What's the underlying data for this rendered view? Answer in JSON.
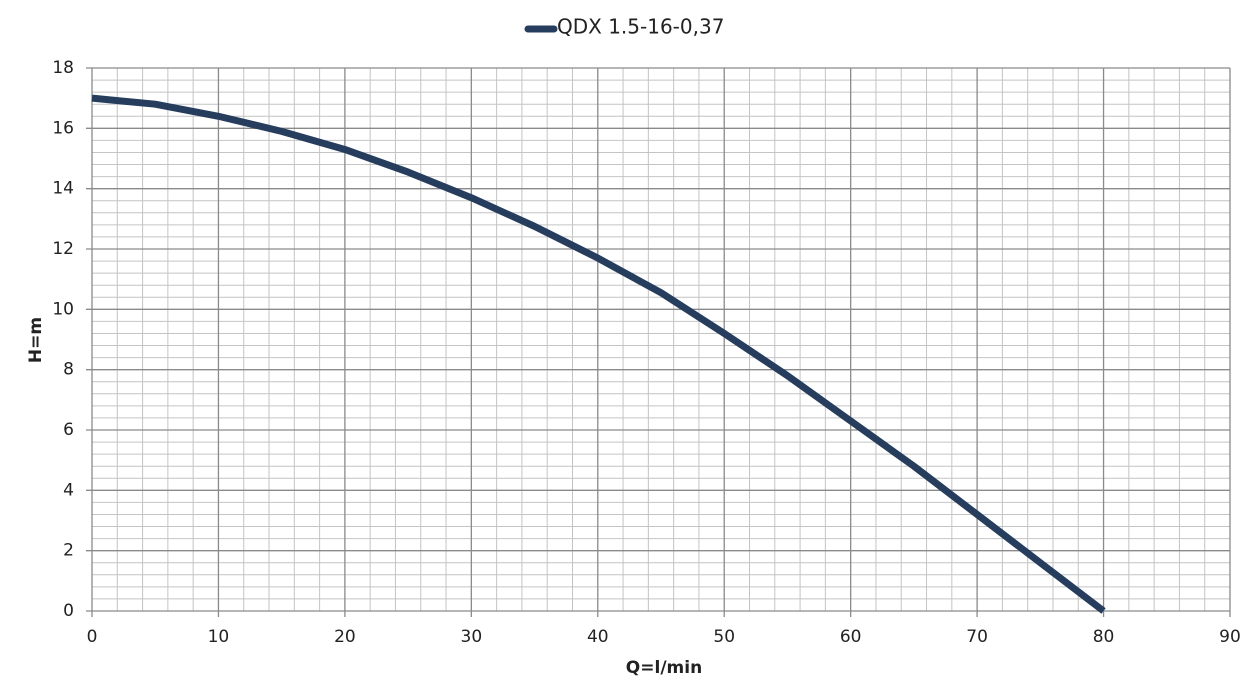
{
  "chart_data": {
    "type": "line",
    "x_label": "Q=l/min",
    "y_label": "H=m",
    "x": [
      0,
      5,
      10,
      15,
      20,
      25,
      30,
      35,
      40,
      45,
      50,
      55,
      60,
      65,
      70,
      75,
      80
    ],
    "series": [
      {
        "name": "QDX 1.5-16-0,37",
        "color": "#263d5e",
        "values": [
          17,
          16.8,
          16.4,
          15.9,
          15.3,
          14.55,
          13.7,
          12.75,
          11.7,
          10.55,
          9.2,
          7.8,
          6.3,
          4.8,
          3.2,
          1.6,
          0
        ]
      }
    ],
    "xlim": [
      0,
      90
    ],
    "xticks": [
      0,
      10,
      20,
      30,
      40,
      50,
      60,
      70,
      80,
      90
    ],
    "ylim": [
      0,
      18
    ],
    "yticks": [
      0,
      2,
      4,
      6,
      8,
      10,
      12,
      14,
      16,
      18
    ],
    "grid": true,
    "legend": "top"
  }
}
